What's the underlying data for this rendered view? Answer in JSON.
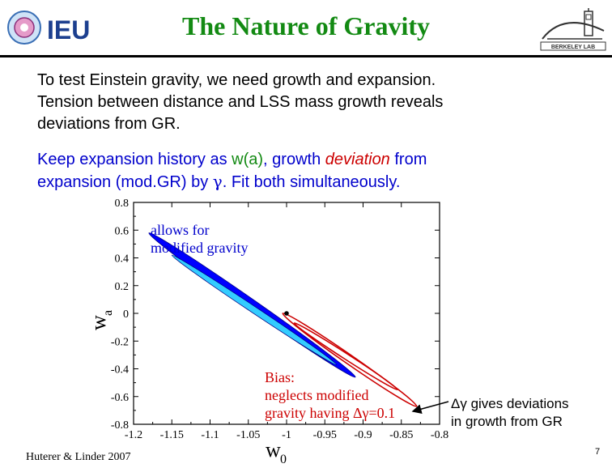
{
  "slide": {
    "title": "The Nature of Gravity",
    "logo_left_text": "IEU",
    "logo_right_text": "BERKELEY LAB",
    "paragraph1": [
      "To test Einstein gravity, we need growth and expansion.",
      "Tension between distance and LSS mass growth reveals",
      "deviations from GR."
    ],
    "paragraph2": {
      "l1_a": "Keep expansion history as ",
      "l1_b": "w(a)",
      "l1_c": ", growth ",
      "l1_d": "deviation",
      "l1_e": " from",
      "l2_a": "expansion (mod.GR) by ",
      "l2_b": "γ",
      "l2_c": ".  Fit both simultaneously."
    },
    "credit": "Huterer & Linder 2007",
    "side_note_line1": "Δγ gives deviations",
    "side_note_line2": "in growth from GR",
    "page_number": "7"
  },
  "colors": {
    "title": "#138a13",
    "blue_text": "#0000cc",
    "outer_contour": "#0000ff",
    "inner_contour": "#33ccff",
    "biased_contour": "#cc0000",
    "annotation_text": "#cc0000",
    "legend_text": "#0000cc"
  },
  "chart_data": {
    "type": "scatter",
    "xlabel_main": "w",
    "xlabel_sub": "0",
    "ylabel_main": "w",
    "ylabel_sub": "a",
    "xlim": [
      -1.2,
      -0.8
    ],
    "ylim": [
      -0.8,
      0.8
    ],
    "x_ticks": [
      "-1.2",
      "-1.15",
      "-1.1",
      "-1.05",
      "-1",
      "-0.95",
      "-0.9",
      "-0.85",
      "-0.8"
    ],
    "y_ticks": [
      "-0.8",
      "-0.6",
      "-0.4",
      "-0.2",
      "0",
      "0.2",
      "0.4",
      "0.6",
      "0.8"
    ],
    "fiducial_point": {
      "w0": -1.0,
      "wa": 0.0
    },
    "contours": [
      {
        "name": "modified gravity 95%",
        "center": [
          -1.0,
          0.0
        ],
        "extent": [
          [
            -1.18,
            0.58
          ],
          [
            -0.91,
            -0.46
          ]
        ],
        "half_width_wa": 0.045,
        "fill": "outer"
      },
      {
        "name": "modified gravity 68%",
        "center": [
          -1.0,
          0.0
        ],
        "extent": [
          [
            -1.15,
            0.42
          ],
          [
            -0.935,
            -0.37
          ]
        ],
        "half_width_wa": 0.028,
        "fill": "inner"
      },
      {
        "name": "bias 95%",
        "center": [
          -0.95,
          -0.28
        ],
        "extent": [
          [
            -1.005,
            0.0
          ],
          [
            -0.83,
            -0.67
          ]
        ],
        "half_width_wa": 0.04,
        "fill": "none"
      },
      {
        "name": "bias 68%",
        "center": [
          -0.95,
          -0.28
        ],
        "extent": [
          [
            -0.99,
            -0.07
          ],
          [
            -0.855,
            -0.55
          ]
        ],
        "half_width_wa": 0.024,
        "fill": "none"
      }
    ],
    "annotation_top": [
      "allows for",
      "modified gravity"
    ],
    "annotation_bias": [
      "Bias:",
      "neglects modified",
      "gravity having Δγ=0.1"
    ]
  }
}
